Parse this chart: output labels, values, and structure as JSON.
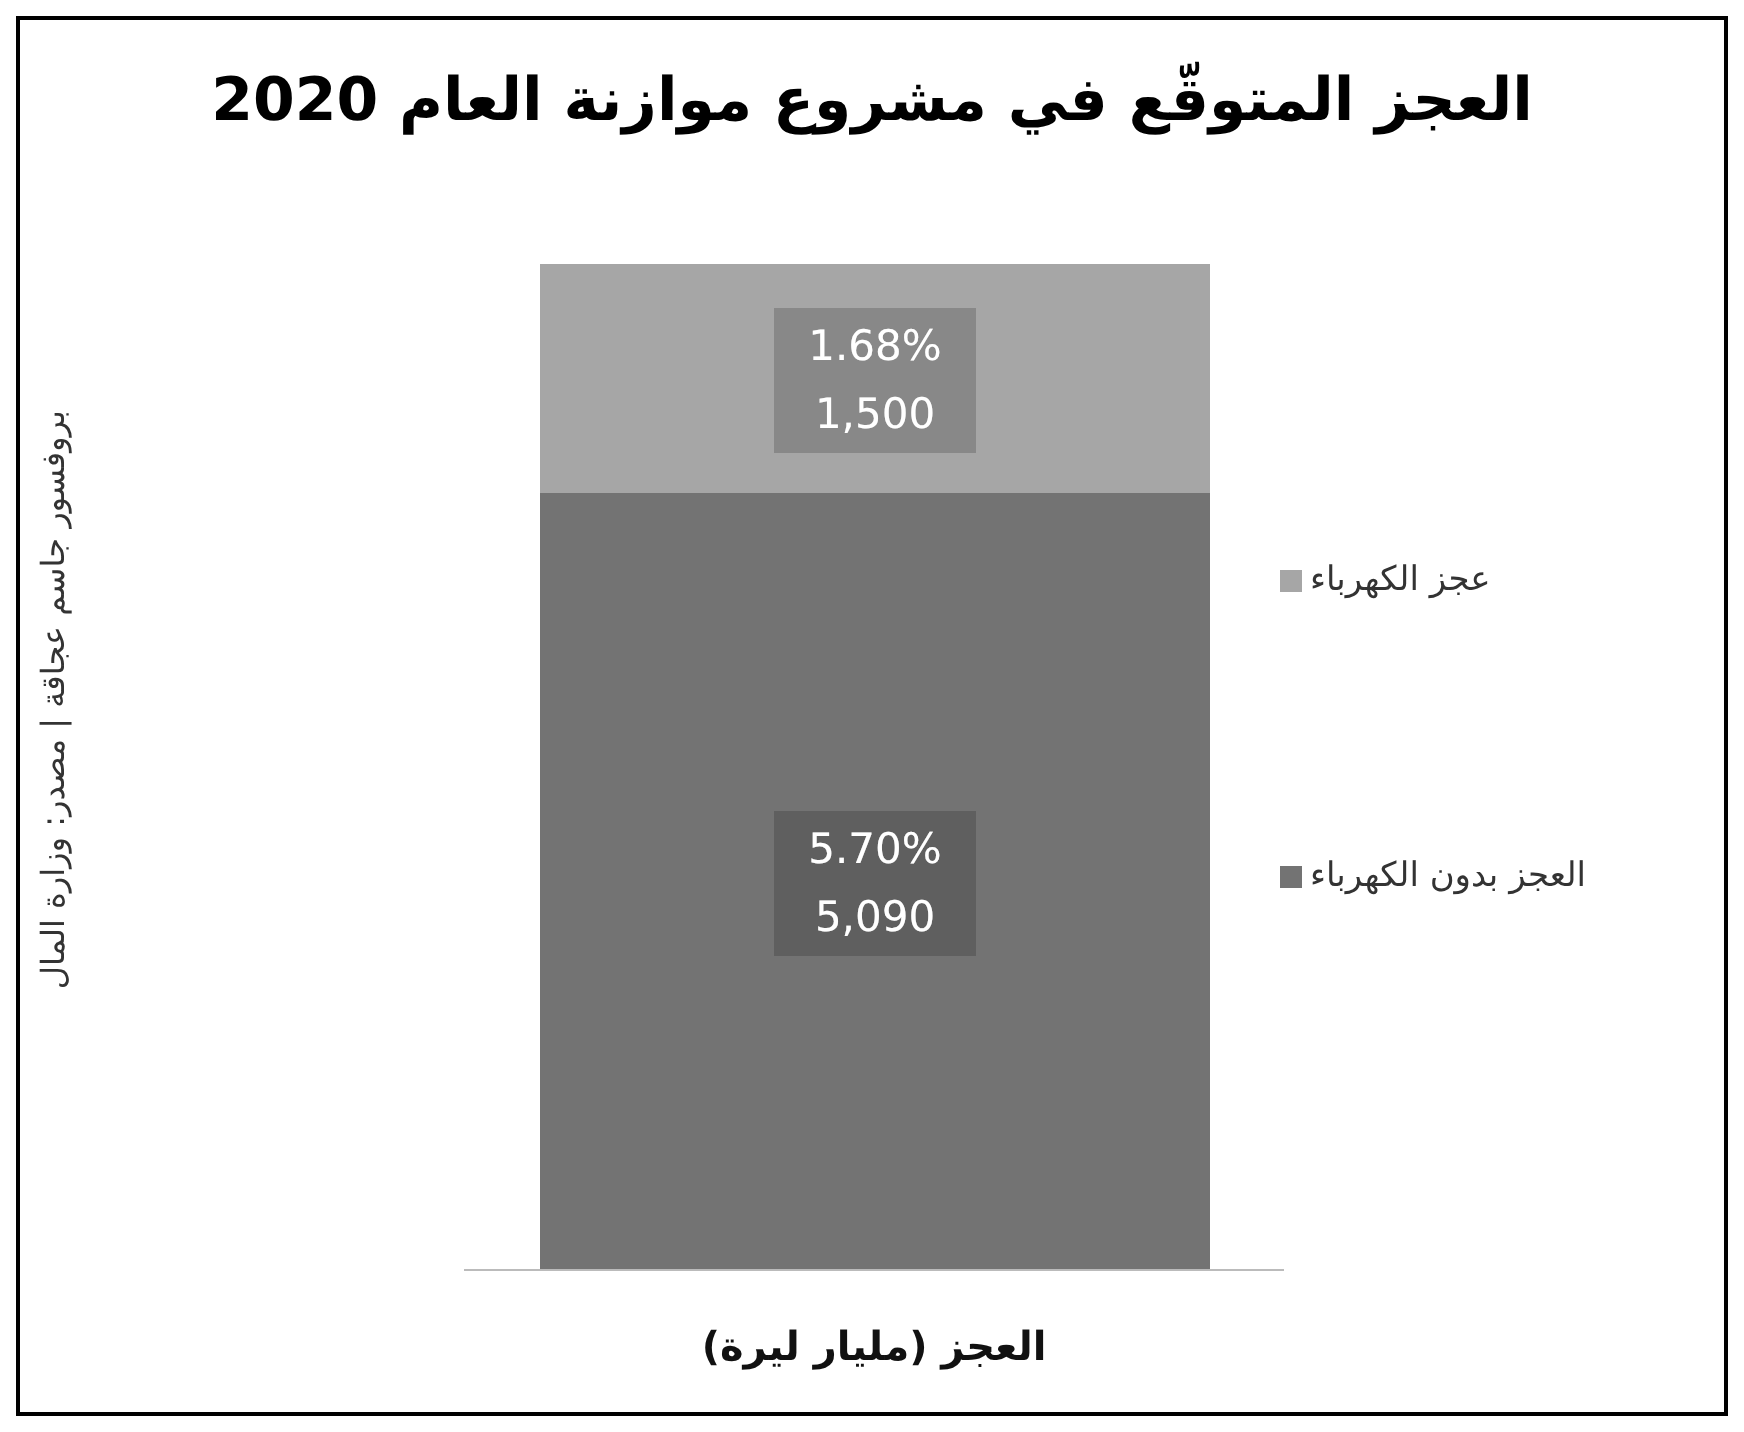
{
  "chart_data": {
    "type": "bar",
    "title": "العجز المتوقّع في مشروع موازنة العام 2020",
    "categories": [
      null
    ],
    "xlabel": "العجز (مليار ليرة)",
    "stacked": true,
    "legend": "right",
    "grid": false,
    "series": [
      {
        "name": "العجز بدون الكهرباء",
        "color": "#737373",
        "values": [
          5090
        ],
        "value_labels": [
          "5.70%\n5,090"
        ]
      },
      {
        "name": "عجز الكهرباء",
        "color": "#a6a6a6",
        "values": [
          1500
        ],
        "value_labels": [
          "1.68%\n1,500"
        ]
      }
    ],
    "annotations": [
      "بروفسور جاسم عجاقة | مصدر: وزارة المال"
    ]
  }
}
